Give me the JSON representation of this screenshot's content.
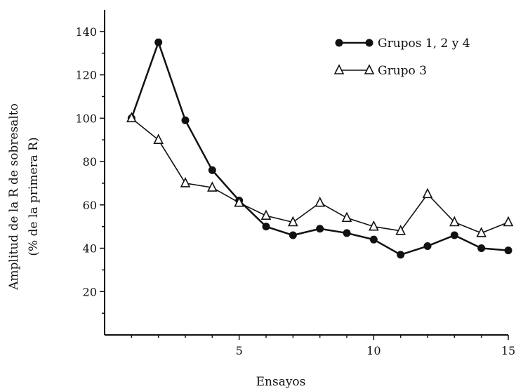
{
  "chart_data": {
    "type": "line",
    "xlabel": "Ensayos",
    "ylabel_line1": "Amplitud de la R de sobresalto",
    "ylabel_line2": "(% de la primera R)",
    "xlim": [
      0,
      15
    ],
    "ylim": [
      0,
      150
    ],
    "x_ticks": [
      5,
      10,
      15
    ],
    "y_ticks": [
      20,
      40,
      60,
      80,
      100,
      120,
      140
    ],
    "grid": false,
    "legend_position": "top-right",
    "series": [
      {
        "name": "Grupos 1, 2 y 4",
        "marker": "filled-circle",
        "x": [
          1,
          2,
          3,
          4,
          5,
          6,
          7,
          8,
          9,
          10,
          11,
          12,
          13,
          14,
          15
        ],
        "values": [
          100,
          135,
          99,
          76,
          62,
          50,
          46,
          49,
          47,
          44,
          37,
          41,
          46,
          40,
          39
        ]
      },
      {
        "name": "Grupo 3",
        "marker": "open-triangle",
        "x": [
          1,
          2,
          3,
          4,
          5,
          6,
          7,
          8,
          9,
          10,
          11,
          12,
          13,
          14,
          15
        ],
        "values": [
          100,
          90,
          70,
          68,
          61,
          55,
          52,
          61,
          54,
          50,
          48,
          65,
          52,
          47,
          52
        ]
      }
    ]
  },
  "colors": {
    "ink": "#111111",
    "background": "#ffffff"
  }
}
